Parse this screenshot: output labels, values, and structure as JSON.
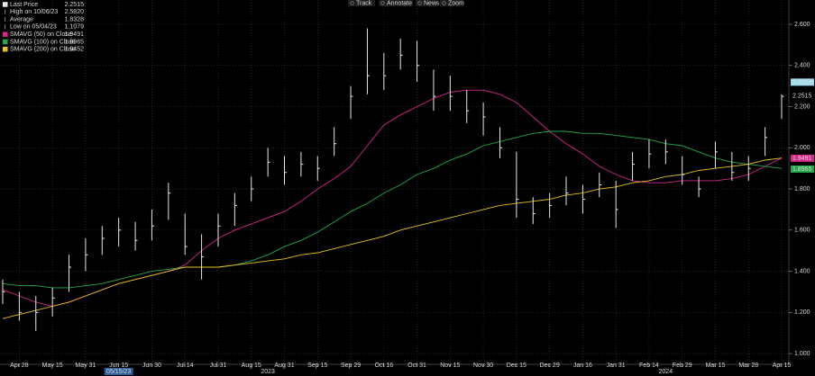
{
  "chart_data": {
    "type": "ohlc",
    "toolbar": [
      "Track",
      "Annotate",
      "News",
      "Zoom"
    ],
    "categories": [
      null,
      "Apr 28",
      null,
      "May 15",
      null,
      "May 31",
      null,
      "Jun 15",
      null,
      "Jun 30",
      null,
      "Jul 14",
      null,
      "Jul 31",
      null,
      "Aug 15",
      null,
      "Aug 31",
      null,
      "Sep 15",
      null,
      "Sep 29",
      null,
      "Oct 16",
      null,
      "Oct 31",
      null,
      "Nov 15",
      null,
      "Nov 30",
      null,
      "Dec 15",
      null,
      "Dec 29",
      null,
      "Jan 16",
      null,
      "Jan 31",
      null,
      "Feb 14",
      null,
      "Feb 29",
      null,
      "Mar 15",
      null,
      "Mar 28",
      null,
      "Apr 15"
    ],
    "years": [
      {
        "label": "2023",
        "index": 16
      },
      {
        "label": "2024",
        "index": 40
      }
    ],
    "cursor_date": {
      "label": "05/15/23",
      "index": 7
    },
    "ylim": [
      0.948,
      2.718
    ],
    "yticks": [
      {
        "value": 1.0,
        "label": "1.000"
      },
      {
        "value": 1.2,
        "label": "1.200"
      },
      {
        "value": 1.4,
        "label": "1.400"
      },
      {
        "value": 1.6,
        "label": "1.600"
      },
      {
        "value": 1.8,
        "label": "1.800"
      },
      {
        "value": 2.0,
        "label": "2.000"
      },
      {
        "value": 2.2,
        "label": "2.200"
      },
      {
        "value": 2.4,
        "label": "2.400"
      },
      {
        "value": 2.6,
        "label": "2.600"
      }
    ],
    "grid": true,
    "price": {
      "name": "Last Price",
      "last": "2.2515",
      "color": "#e8e8e8",
      "high": [
        1.36,
        1.3,
        1.28,
        1.32,
        1.48,
        1.56,
        1.62,
        1.66,
        1.64,
        1.7,
        1.83,
        1.68,
        1.58,
        1.68,
        1.78,
        1.86,
        2.0,
        1.96,
        1.98,
        1.96,
        2.1,
        2.3,
        2.58,
        2.46,
        2.53,
        2.52,
        2.38,
        2.35,
        2.28,
        2.22,
        2.1,
        1.98,
        1.76,
        1.78,
        1.86,
        1.82,
        1.88,
        1.84,
        1.98,
        2.04,
        2.04,
        1.96,
        1.86,
        2.03,
        1.98,
        1.96,
        2.1,
        2.26
      ],
      "low": [
        1.24,
        1.16,
        1.11,
        1.18,
        1.3,
        1.4,
        1.48,
        1.52,
        1.5,
        1.55,
        1.65,
        1.48,
        1.36,
        1.52,
        1.62,
        1.74,
        1.86,
        1.82,
        1.86,
        1.84,
        1.96,
        2.14,
        2.26,
        2.28,
        2.38,
        2.32,
        2.18,
        2.18,
        2.12,
        2.06,
        1.95,
        1.66,
        1.63,
        1.66,
        1.72,
        1.68,
        1.76,
        1.61,
        1.84,
        1.9,
        1.92,
        1.82,
        1.76,
        1.9,
        1.84,
        1.84,
        1.96,
        2.14
      ],
      "close": [
        1.3,
        1.2,
        1.2,
        1.27,
        1.42,
        1.48,
        1.56,
        1.6,
        1.55,
        1.62,
        1.78,
        1.52,
        1.47,
        1.62,
        1.72,
        1.8,
        1.93,
        1.88,
        1.92,
        1.9,
        2.02,
        2.25,
        2.35,
        2.35,
        2.45,
        2.4,
        2.25,
        2.25,
        2.18,
        2.15,
        2.0,
        1.75,
        1.68,
        1.72,
        1.78,
        1.75,
        1.82,
        1.7,
        1.92,
        1.97,
        1.98,
        1.87,
        1.8,
        1.98,
        1.88,
        1.9,
        2.05,
        2.25
      ]
    },
    "stats": [
      {
        "label": "High on 10/06/23",
        "value": "2.5820"
      },
      {
        "label": "Average",
        "value": "1.8328"
      },
      {
        "label": "Low on 05/04/23",
        "value": "1.1079"
      }
    ],
    "series": [
      {
        "name": "SMAVG (50)  on Close",
        "last": "1.9491",
        "color": "#d62687",
        "values": [
          1.31,
          1.28,
          1.25,
          1.23,
          1.25,
          1.28,
          1.31,
          1.34,
          1.36,
          1.38,
          1.4,
          1.43,
          1.5,
          1.56,
          1.6,
          1.63,
          1.66,
          1.69,
          1.74,
          1.8,
          1.85,
          1.91,
          2.01,
          2.11,
          2.16,
          2.2,
          2.24,
          2.27,
          2.28,
          2.28,
          2.26,
          2.22,
          2.15,
          2.08,
          2.02,
          1.97,
          1.91,
          1.87,
          1.84,
          1.83,
          1.83,
          1.84,
          1.84,
          1.84,
          1.85,
          1.87,
          1.91,
          1.95
        ]
      },
      {
        "name": "SMAVG (100)  on Close",
        "last": "1.8965",
        "color": "#22a84a",
        "values": [
          1.34,
          1.33,
          1.33,
          1.32,
          1.32,
          1.33,
          1.34,
          1.36,
          1.38,
          1.4,
          1.41,
          1.42,
          1.42,
          1.42,
          1.43,
          1.45,
          1.48,
          1.52,
          1.55,
          1.59,
          1.64,
          1.69,
          1.73,
          1.78,
          1.82,
          1.87,
          1.9,
          1.94,
          1.97,
          2.01,
          2.03,
          2.05,
          2.07,
          2.08,
          2.08,
          2.07,
          2.07,
          2.06,
          2.05,
          2.04,
          2.02,
          2.01,
          1.98,
          1.95,
          1.93,
          1.92,
          1.91,
          1.9
        ]
      },
      {
        "name": "SMAVG (200)  on Close",
        "last": "1.9452",
        "color": "#e6c21e",
        "values": [
          1.17,
          1.19,
          1.21,
          1.23,
          1.25,
          1.28,
          1.31,
          1.34,
          1.36,
          1.38,
          1.4,
          1.42,
          1.42,
          1.42,
          1.43,
          1.44,
          1.45,
          1.46,
          1.48,
          1.49,
          1.51,
          1.53,
          1.55,
          1.57,
          1.6,
          1.62,
          1.64,
          1.66,
          1.68,
          1.7,
          1.72,
          1.73,
          1.74,
          1.75,
          1.77,
          1.78,
          1.8,
          1.81,
          1.83,
          1.84,
          1.86,
          1.87,
          1.89,
          1.9,
          1.91,
          1.92,
          1.94,
          1.95
        ]
      }
    ],
    "annotations": [
      {
        "value": 2.3188,
        "color": "#9fdcf0"
      }
    ]
  }
}
